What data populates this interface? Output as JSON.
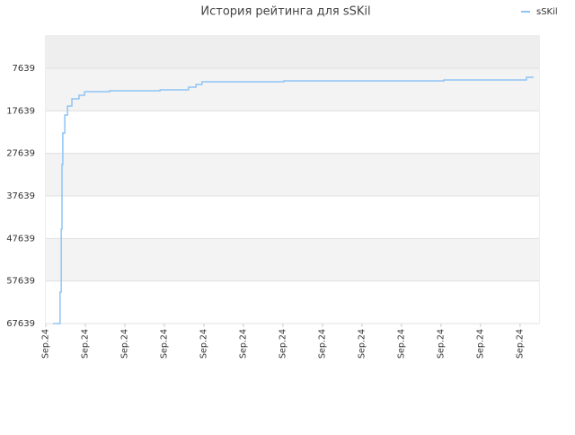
{
  "chart_data": {
    "type": "line",
    "title": "История рейтинга для sSKil",
    "x": [
      0.18,
      0.34,
      0.36,
      0.39,
      0.41,
      0.43,
      0.48,
      0.55,
      0.66,
      0.84,
      0.98,
      1.57,
      1.61,
      2.84,
      2.89,
      3.52,
      3.61,
      3.8,
      3.95,
      5.93,
      6.02,
      9.98,
      10.07,
      12.02,
      12.16,
      12.32
    ],
    "series": [
      {
        "name": "sSKil",
        "color": "#90c4f4",
        "values": [
          67639,
          67639,
          60248,
          45459,
          30246,
          22851,
          18626,
          16513,
          14823,
          13977,
          13132,
          13132,
          12921,
          12921,
          12710,
          12710,
          12076,
          11442,
          10808,
          10808,
          10597,
          10597,
          10386,
          10386,
          9752,
          9541
        ]
      }
    ],
    "ylim": [
      67639,
      33
    ],
    "yticks": [
      7639,
      17639,
      27639,
      37639,
      47639,
      57639,
      67639
    ],
    "xlim": [
      0,
      12.48
    ],
    "xticks": [
      {
        "value": 0,
        "label": "Sep.24"
      },
      {
        "value": 1,
        "label": "Sep.24"
      },
      {
        "value": 2,
        "label": "Sep.24"
      },
      {
        "value": 3,
        "label": "Sep.24"
      },
      {
        "value": 4,
        "label": "Sep.24"
      },
      {
        "value": 5,
        "label": "Sep.24"
      },
      {
        "value": 6,
        "label": "Sep.24"
      },
      {
        "value": 7,
        "label": "Sep.24"
      },
      {
        "value": 8,
        "label": "Sep.24"
      },
      {
        "value": 9,
        "label": "Sep.24"
      },
      {
        "value": 10,
        "label": "Sep.24"
      },
      {
        "value": 11,
        "label": "Sep.24"
      },
      {
        "value": 12,
        "label": "Sep.24"
      }
    ],
    "grid": true,
    "legend": "top-right"
  }
}
